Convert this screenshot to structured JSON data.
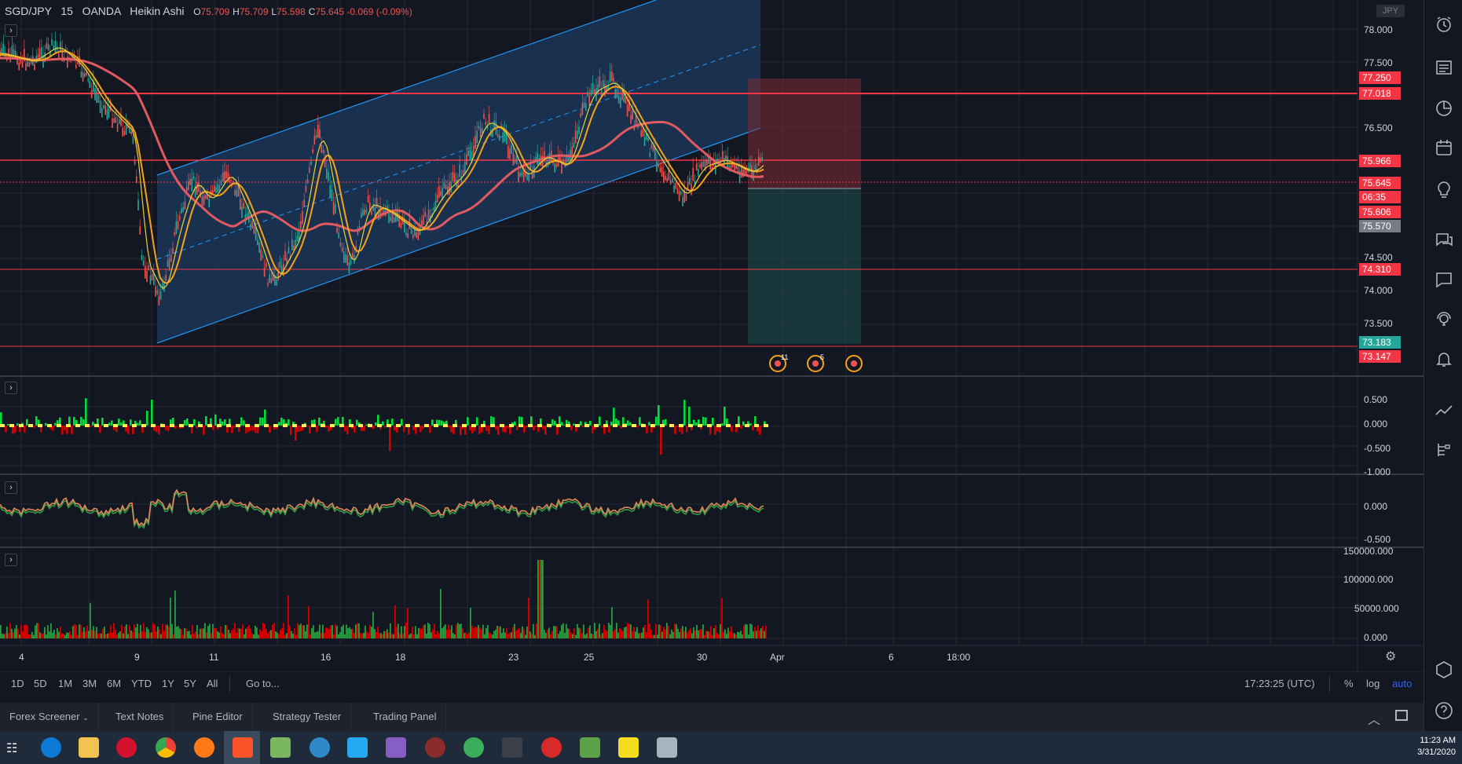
{
  "legend": {
    "symbol": "SGD/JPY",
    "interval": "15",
    "exchange": "OANDA",
    "chart_style": "Heikin Ashi",
    "o_key": "O",
    "o_val": "75.709",
    "h_key": "H",
    "h_val": "75.709",
    "l_key": "L",
    "l_val": "75.598",
    "c_key": "C",
    "c_val": "75.645 -0.069 (-0.09%)"
  },
  "currency_badge": "JPY",
  "price_axis": [
    "78.000",
    "77.500",
    "76.500",
    "74.500",
    "74.000",
    "73.500"
  ],
  "price_tags": {
    "t77250": "77.250",
    "t77018": "77.018",
    "t75966": "75.966",
    "t75645": "75.645",
    "countdown": "06:35",
    "t75606": "75.606",
    "t75570": "75.570",
    "t74310": "74.310",
    "t73183": "73.183",
    "t73147": "73.147"
  },
  "osc1_axis": [
    "0.500",
    "0.000",
    "-0.500",
    "-1.000"
  ],
  "osc2_axis": [
    "0.000",
    "-0.500"
  ],
  "volume_axis": [
    "150000.000",
    "100000.000",
    "50000.000",
    "0.000"
  ],
  "event_badges": [
    "11",
    "5"
  ],
  "time_axis": [
    "4",
    "9",
    "11",
    "16",
    "18",
    "23",
    "25",
    "30",
    "Apr",
    "6",
    "18:00"
  ],
  "ranges": [
    "1D",
    "5D",
    "1M",
    "3M",
    "6M",
    "YTD",
    "1Y",
    "5Y",
    "All"
  ],
  "goto_label": "Go to...",
  "clock_utc": "17:23:25 (UTC)",
  "scale_opts": {
    "percent": "%",
    "log": "log",
    "auto": "auto"
  },
  "panel_tabs": [
    "Forex Screener",
    "Text Notes",
    "Pine Editor",
    "Strategy Tester",
    "Trading Panel"
  ],
  "taskbar": {
    "time": "11:23 AM",
    "date": "3/31/2020"
  },
  "colors": {
    "bg": "#131722",
    "up": "#26a69a",
    "down": "#ef5350",
    "ma_red": "#e05a62",
    "ma_orange": "#f7a21b",
    "ma_yellow": "#e8d23a",
    "channel": "#2962ff",
    "hline": "#f23645",
    "green_hist": "#00e03a",
    "red_hist": "#d50000"
  }
}
